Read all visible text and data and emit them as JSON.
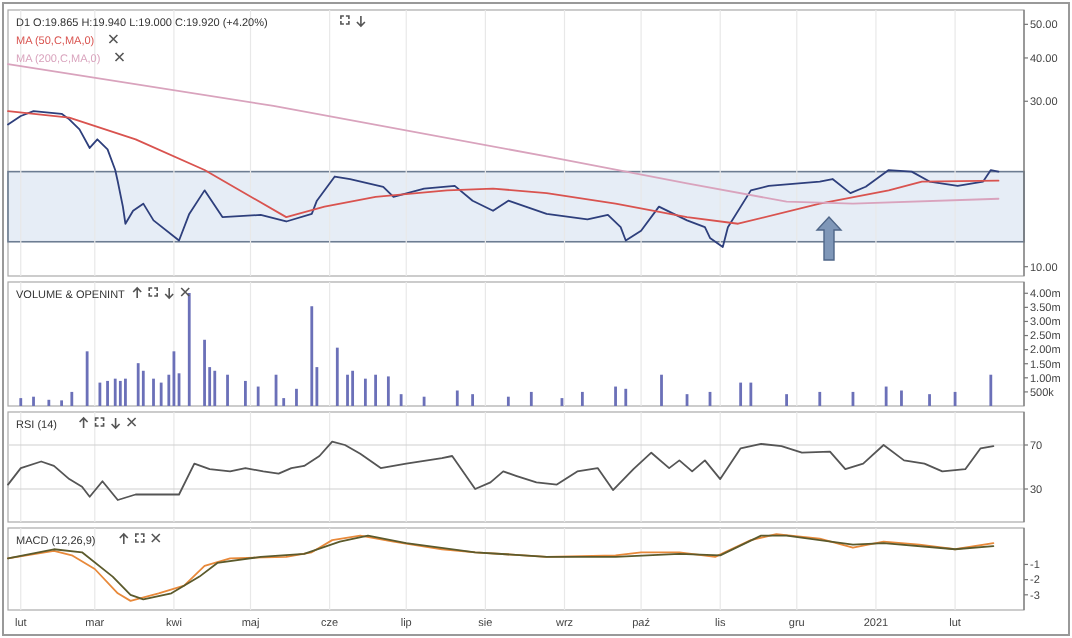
{
  "chart_data": [
    {
      "type": "line",
      "title": "D1 O:19.865 H:19.940 L:19.000 C:19.920 (+4.20%)",
      "log": "y",
      "grid": "x",
      "legend": "top left",
      "tick_labels": "y",
      "xlim": [
        "2020-01-27",
        "2021-02-28"
      ],
      "xticks": [
        {
          "value": "2020-02-01",
          "label": null
        },
        {
          "value": "2020-03-01",
          "label": null
        },
        {
          "value": "2020-04-01",
          "label": null
        },
        {
          "value": "2020-05-01",
          "label": null
        },
        {
          "value": "2020-06-01",
          "label": null
        },
        {
          "value": "2020-07-01",
          "label": null
        },
        {
          "value": "2020-08-01",
          "label": null
        },
        {
          "value": "2020-09-01",
          "label": null
        },
        {
          "value": "2020-10-01",
          "label": null
        },
        {
          "value": "2020-11-01",
          "label": null
        },
        {
          "value": "2020-12-01",
          "label": null
        },
        {
          "value": "2021-01-01",
          "label": null
        },
        {
          "value": "2021-02-01",
          "label": null
        }
      ],
      "ylim": [
        9.4,
        55
      ],
      "yticks": [
        {
          "value": 10,
          "label": "10.00"
        },
        {
          "value": 30,
          "label": "30.00"
        },
        {
          "value": 40,
          "label": "40.00"
        },
        {
          "value": 50,
          "label": "50.00"
        }
      ],
      "bands": [
        {
          "axis": "y",
          "from": 11.8,
          "to": 18.8,
          "color": "#dce6f2"
        }
      ],
      "series": [
        {
          "color": "#2e3f7c",
          "x": [
            "2020-01-27",
            "2020-02-01",
            "2020-02-06",
            "2020-02-17",
            "2020-02-20",
            "2020-02-24",
            "2020-02-28",
            "2020-03-02",
            "2020-03-06",
            "2020-03-09",
            "2020-03-10",
            "2020-03-12",
            "2020-03-13",
            "2020-03-16",
            "2020-03-20",
            "2020-03-24",
            "2020-04-03",
            "2020-04-07",
            "2020-04-13",
            "2020-04-20",
            "2020-05-05",
            "2020-05-15",
            "2020-05-25",
            "2020-05-27",
            "2020-06-03",
            "2020-06-09",
            "2020-06-22",
            "2020-06-26",
            "2020-07-08",
            "2020-07-20",
            "2020-07-27",
            "2020-08-04",
            "2020-08-10",
            "2020-08-25",
            "2020-09-10",
            "2020-09-18",
            "2020-09-23",
            "2020-09-25",
            "2020-10-01",
            "2020-10-08",
            "2020-10-19",
            "2020-10-26",
            "2020-10-28",
            "2020-11-02",
            "2020-11-04",
            "2020-11-13",
            "2020-11-20",
            "2020-12-10",
            "2020-12-15",
            "2020-12-22",
            "2020-12-28",
            "2021-01-06",
            "2021-01-15",
            "2021-01-22",
            "2021-02-02",
            "2021-02-12",
            "2021-02-15",
            "2021-02-18"
          ],
          "values": [
            25.7,
            27.2,
            28.1,
            27.6,
            26.6,
            24.9,
            22.0,
            23.3,
            21.8,
            19.0,
            17.6,
            14.9,
            13.3,
            14.5,
            15.2,
            13.6,
            11.9,
            14.2,
            16.6,
            13.9,
            14.1,
            13.5,
            14.2,
            15.5,
            18.2,
            17.9,
            17.0,
            15.9,
            16.8,
            17.1,
            15.5,
            14.5,
            15.5,
            14.2,
            13.7,
            14.1,
            13.0,
            11.9,
            12.7,
            14.9,
            13.6,
            13.0,
            12.1,
            11.4,
            13.0,
            16.6,
            17.1,
            17.6,
            17.9,
            16.3,
            17.0,
            19.0,
            18.8,
            17.6,
            17.1,
            17.6,
            19.0,
            18.8
          ]
        },
        {
          "name": "MA (50,C,MA,0)",
          "color": "#d9534f",
          "x": [
            "2020-01-27",
            "2020-02-20",
            "2020-03-17",
            "2020-04-13",
            "2020-05-15",
            "2020-05-30",
            "2020-06-19",
            "2020-07-17",
            "2020-08-04",
            "2020-08-25",
            "2020-09-21",
            "2020-10-19",
            "2020-11-08",
            "2020-12-10",
            "2021-01-06",
            "2021-01-19",
            "2021-02-18"
          ],
          "values": [
            28.1,
            26.9,
            23.3,
            19.0,
            13.9,
            14.9,
            15.9,
            16.6,
            16.8,
            16.3,
            15.2,
            13.9,
            13.3,
            15.2,
            16.6,
            17.6,
            17.7
          ]
        },
        {
          "name": "MA (200,C,MA,0)",
          "color": "#d9a3bd",
          "x": [
            "2020-01-27",
            "2020-05-10",
            "2020-08-25",
            "2020-10-19",
            "2020-11-27",
            "2020-12-23",
            "2021-02-18"
          ],
          "values": [
            38.4,
            29.1,
            20.8,
            17.4,
            15.4,
            15.2,
            15.7
          ]
        }
      ]
    },
    {
      "type": "bar",
      "title": "VOLUME & OPENINT",
      "grid": "x",
      "tick_labels": "y",
      "xlim": [
        "2020-01-27",
        "2021-02-28"
      ],
      "xticks": [
        {
          "value": "2020-02-01",
          "label": null
        },
        {
          "value": "2020-03-01",
          "label": null
        },
        {
          "value": "2020-04-01",
          "label": null
        },
        {
          "value": "2020-05-01",
          "label": null
        },
        {
          "value": "2020-06-01",
          "label": null
        },
        {
          "value": "2020-07-01",
          "label": null
        },
        {
          "value": "2020-08-01",
          "label": null
        },
        {
          "value": "2020-09-01",
          "label": null
        },
        {
          "value": "2020-10-01",
          "label": null
        },
        {
          "value": "2020-11-01",
          "label": null
        },
        {
          "value": "2020-12-01",
          "label": null
        },
        {
          "value": "2021-01-01",
          "label": null
        },
        {
          "value": "2021-02-01",
          "label": null
        }
      ],
      "ylim": [
        0,
        4400000
      ],
      "yticks": [
        {
          "value": 500000,
          "label": "500k"
        },
        {
          "value": 1000000,
          "label": "1.00m"
        },
        {
          "value": 1500000,
          "label": "1.50m"
        },
        {
          "value": 2000000,
          "label": "2.00m"
        },
        {
          "value": 2500000,
          "label": "2.50m"
        },
        {
          "value": 3000000,
          "label": "3.00m"
        },
        {
          "value": 3500000,
          "label": "3.50m"
        },
        {
          "value": 4000000,
          "label": "4.00m"
        }
      ],
      "series": [
        {
          "color": "#6b70b8",
          "x": [
            "2020-02-01",
            "2020-02-06",
            "2020-02-12",
            "2020-02-17",
            "2020-02-21",
            "2020-02-27",
            "2020-03-03",
            "2020-03-06",
            "2020-03-09",
            "2020-03-11",
            "2020-03-13",
            "2020-03-18",
            "2020-03-20",
            "2020-03-24",
            "2020-03-27",
            "2020-03-30",
            "2020-04-01",
            "2020-04-03",
            "2020-04-07",
            "2020-04-13",
            "2020-04-15",
            "2020-04-17",
            "2020-04-22",
            "2020-04-29",
            "2020-05-04",
            "2020-05-11",
            "2020-05-14",
            "2020-05-19",
            "2020-05-25",
            "2020-05-27",
            "2020-06-04",
            "2020-06-08",
            "2020-06-10",
            "2020-06-15",
            "2020-06-19",
            "2020-06-24",
            "2020-06-29",
            "2020-07-08",
            "2020-07-21",
            "2020-07-27",
            "2020-08-10",
            "2020-08-19",
            "2020-08-31",
            "2020-09-08",
            "2020-09-21",
            "2020-09-25",
            "2020-10-09",
            "2020-10-19",
            "2020-10-28",
            "2020-11-09",
            "2020-11-13",
            "2020-11-27",
            "2020-12-10",
            "2020-12-23",
            "2021-01-05",
            "2021-01-11",
            "2021-01-22",
            "2021-02-01",
            "2021-02-15"
          ],
          "values": [
            280000,
            330000,
            220000,
            200000,
            500000,
            1940000,
            830000,
            890000,
            970000,
            890000,
            970000,
            1520000,
            1250000,
            970000,
            830000,
            1110000,
            1940000,
            1160000,
            4010000,
            2350000,
            1380000,
            1250000,
            1110000,
            890000,
            690000,
            1110000,
            280000,
            610000,
            3540000,
            1380000,
            2070000,
            1110000,
            1250000,
            970000,
            1110000,
            1050000,
            420000,
            330000,
            550000,
            420000,
            330000,
            500000,
            280000,
            500000,
            690000,
            610000,
            1110000,
            420000,
            500000,
            830000,
            830000,
            420000,
            500000,
            500000,
            690000,
            550000,
            420000,
            500000,
            1110000
          ]
        }
      ]
    },
    {
      "type": "line",
      "title": "RSI (14)",
      "grid": true,
      "tick_labels": "y",
      "xlim": [
        "2020-01-27",
        "2021-02-28"
      ],
      "xticks": [
        {
          "value": "2020-02-01",
          "label": null
        },
        {
          "value": "2020-03-01",
          "label": null
        },
        {
          "value": "2020-04-01",
          "label": null
        },
        {
          "value": "2020-05-01",
          "label": null
        },
        {
          "value": "2020-06-01",
          "label": null
        },
        {
          "value": "2020-07-01",
          "label": null
        },
        {
          "value": "2020-08-01",
          "label": null
        },
        {
          "value": "2020-09-01",
          "label": null
        },
        {
          "value": "2020-10-01",
          "label": null
        },
        {
          "value": "2020-11-01",
          "label": null
        },
        {
          "value": "2020-12-01",
          "label": null
        },
        {
          "value": "2021-01-01",
          "label": null
        },
        {
          "value": "2021-02-01",
          "label": null
        }
      ],
      "ylim": [
        0,
        100
      ],
      "yticks": [
        30,
        70
      ],
      "series": [
        {
          "color": "#555555",
          "x": [
            "2020-01-27",
            "2020-02-01",
            "2020-02-09",
            "2020-02-14",
            "2020-02-20",
            "2020-02-25",
            "2020-02-28",
            "2020-03-04",
            "2020-03-10",
            "2020-03-17",
            "2020-03-28",
            "2020-04-03",
            "2020-04-09",
            "2020-04-15",
            "2020-04-23",
            "2020-04-29",
            "2020-05-06",
            "2020-05-12",
            "2020-05-17",
            "2020-05-22",
            "2020-05-28",
            "2020-06-02",
            "2020-06-07",
            "2020-06-13",
            "2020-06-21",
            "2020-07-01",
            "2020-07-15",
            "2020-07-19",
            "2020-07-28",
            "2020-08-03",
            "2020-08-08",
            "2020-08-13",
            "2020-08-21",
            "2020-08-29",
            "2020-09-06",
            "2020-09-14",
            "2020-09-20",
            "2020-09-28",
            "2020-10-05",
            "2020-10-12",
            "2020-10-16",
            "2020-10-21",
            "2020-10-26",
            "2020-11-01",
            "2020-11-09",
            "2020-11-17",
            "2020-11-25",
            "2020-12-03",
            "2020-12-14",
            "2020-12-20",
            "2020-12-27",
            "2021-01-04",
            "2021-01-12",
            "2021-01-20",
            "2021-01-27",
            "2021-02-05",
            "2021-02-11",
            "2021-02-16"
          ],
          "values": [
            34,
            49,
            55,
            51,
            39,
            32,
            23,
            37,
            20,
            25,
            25,
            25,
            53,
            48,
            46,
            49,
            46,
            44,
            49,
            51,
            60,
            73,
            70,
            62,
            49,
            53,
            58,
            60,
            30,
            36,
            46,
            42,
            36,
            34,
            46,
            49,
            29,
            48,
            63,
            49,
            56,
            46,
            56,
            39,
            67,
            71,
            69,
            63,
            64,
            48,
            53,
            70,
            56,
            53,
            46,
            48,
            67,
            69
          ]
        }
      ]
    },
    {
      "type": "line",
      "title": "MACD (12,26,9)",
      "grid": "x",
      "xlim": [
        "2020-01-27",
        "2021-02-28"
      ],
      "xticks": [
        {
          "value": "2020-02-01",
          "label": "lut"
        },
        {
          "value": "2020-03-01",
          "label": "mar"
        },
        {
          "value": "2020-04-01",
          "label": "kwi"
        },
        {
          "value": "2020-05-01",
          "label": "maj"
        },
        {
          "value": "2020-06-01",
          "label": "cze"
        },
        {
          "value": "2020-07-01",
          "label": "lip"
        },
        {
          "value": "2020-08-01",
          "label": "sie"
        },
        {
          "value": "2020-09-01",
          "label": "wrz"
        },
        {
          "value": "2020-10-01",
          "label": "paź"
        },
        {
          "value": "2020-11-01",
          "label": "lis"
        },
        {
          "value": "2020-12-01",
          "label": "gru"
        },
        {
          "value": "2021-01-01",
          "label": "2021"
        },
        {
          "value": "2021-02-01",
          "label": "lut"
        }
      ],
      "ylim": [
        -4,
        1.4
      ],
      "yticks": [
        -3,
        -2,
        -1
      ],
      "series": [
        {
          "color": "#e8893a",
          "x": [
            "2020-01-27",
            "2020-02-14",
            "2020-02-21",
            "2020-03-01",
            "2020-03-10",
            "2020-03-15",
            "2020-03-26",
            "2020-04-05",
            "2020-04-13",
            "2020-04-23",
            "2020-05-15",
            "2020-05-25",
            "2020-06-02",
            "2020-06-13",
            "2020-06-26",
            "2020-07-15",
            "2020-07-28",
            "2020-08-25",
            "2020-09-21",
            "2020-10-01",
            "2020-10-16",
            "2020-10-30",
            "2020-11-13",
            "2020-11-23",
            "2020-12-10",
            "2020-12-23",
            "2021-01-04",
            "2021-01-18",
            "2021-02-01",
            "2021-02-16"
          ],
          "values": [
            -0.6,
            -0.1,
            -0.4,
            -1.3,
            -2.9,
            -3.4,
            -2.9,
            -2.4,
            -1.1,
            -0.6,
            -0.5,
            -0.2,
            0.6,
            0.9,
            0.5,
            0,
            -0.2,
            -0.5,
            -0.4,
            -0.2,
            -0.2,
            -0.5,
            0.6,
            1,
            0.7,
            0.1,
            0.5,
            0.3,
            0,
            0.4
          ]
        },
        {
          "color": "#5b5a2c",
          "x": [
            "2020-01-27",
            "2020-02-14",
            "2020-02-25",
            "2020-03-08",
            "2020-03-15",
            "2020-03-20",
            "2020-03-31",
            "2020-04-11",
            "2020-04-18",
            "2020-05-05",
            "2020-05-22",
            "2020-06-05",
            "2020-06-16",
            "2020-07-01",
            "2020-07-28",
            "2020-08-25",
            "2020-09-21",
            "2020-10-16",
            "2020-11-01",
            "2020-11-17",
            "2020-11-27",
            "2020-12-23",
            "2021-01-04",
            "2021-02-01",
            "2021-02-16"
          ],
          "values": [
            -0.6,
            0,
            -0.2,
            -1.8,
            -3,
            -3.3,
            -2.9,
            -1.8,
            -0.9,
            -0.5,
            -0.3,
            0.5,
            0.9,
            0.4,
            -0.2,
            -0.5,
            -0.5,
            -0.3,
            -0.4,
            0.9,
            0.9,
            0.3,
            0.4,
            0,
            0.2
          ]
        }
      ]
    }
  ]
}
